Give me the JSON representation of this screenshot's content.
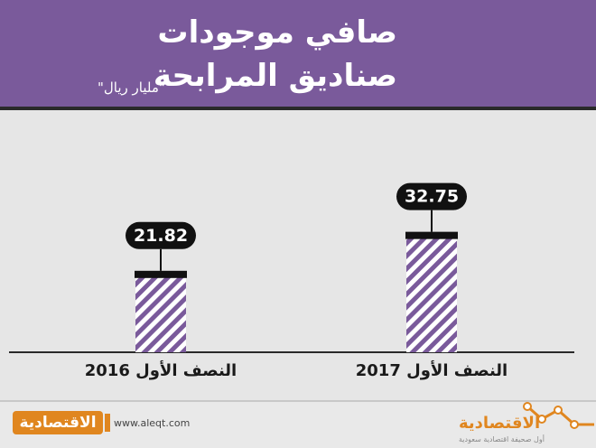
{
  "header": {
    "title_line1": "صافي موجودات",
    "title_line2": "صناديق المرابحة",
    "unit": "\"مليار ريال\""
  },
  "chart_data": {
    "type": "bar",
    "title": "صافي موجودات صناديق المرابحة",
    "ylabel": "\"مليار ريال\"",
    "categories": [
      "النصف الأول 2016",
      "النصف الأول 2017"
    ],
    "values": [
      21.82,
      32.75
    ],
    "value_labels": [
      "21.82",
      "32.75"
    ],
    "ylim": [
      0,
      40
    ],
    "grid": false,
    "legend": "none",
    "colors": {
      "hatch": "#7a5a9b",
      "cap": "#111111",
      "label_bg": "#111111",
      "axis": "#2a2a2a"
    }
  },
  "footer": {
    "brand_left": "الاقتصادية",
    "site": "www.aleqt.com",
    "brand_right": "الاقتصادية",
    "brand_right_sub": "أول صحيفة اقتصادية سعودية"
  },
  "colors": {
    "header_bg": "#7a5a9b",
    "background": "#e6e6e6",
    "brand_orange": "#e0861f"
  }
}
